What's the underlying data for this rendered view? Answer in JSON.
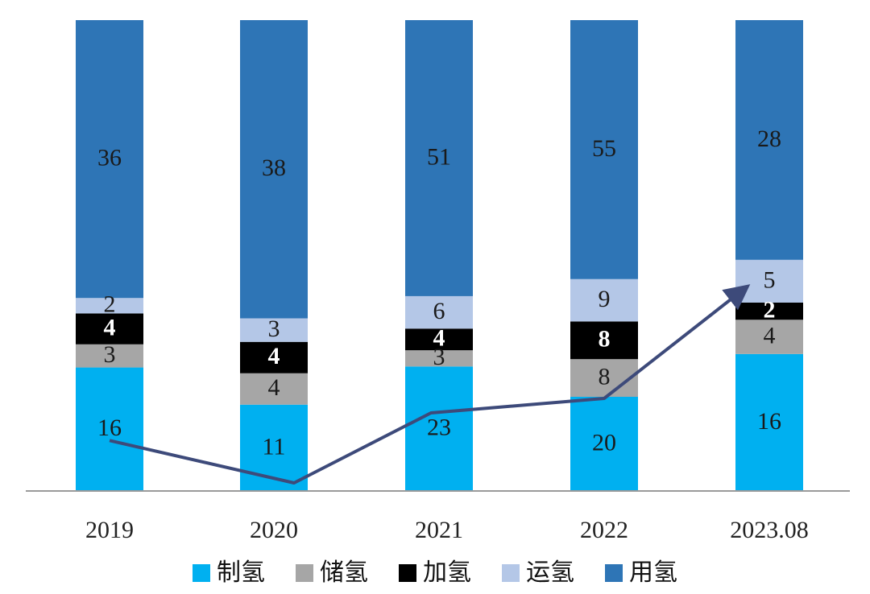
{
  "chart_data": {
    "type": "bar",
    "stacked": true,
    "categories": [
      "2019",
      "2020",
      "2021",
      "2022",
      "2023.08"
    ],
    "series": [
      {
        "name": "制氢",
        "color": "#00b0f0",
        "values": [
          16,
          11,
          23,
          20,
          16
        ],
        "label_color": "#1a1a1a",
        "label_bold": false
      },
      {
        "name": "储氢",
        "color": "#a6a6a6",
        "values": [
          3,
          4,
          3,
          8,
          4
        ],
        "label_color": "#1a1a1a",
        "label_bold": false
      },
      {
        "name": "加氢",
        "color": "#000000",
        "values": [
          4,
          4,
          4,
          8,
          2
        ],
        "label_color": "#ffffff",
        "label_bold": true
      },
      {
        "name": "运氢",
        "color": "#b4c7e7",
        "values": [
          2,
          3,
          6,
          9,
          5
        ],
        "label_color": "#1a1a1a",
        "label_bold": false
      },
      {
        "name": "用氢",
        "color": "#2e75b6",
        "values": [
          36,
          38,
          51,
          55,
          28
        ],
        "label_color": "#1a1a1a",
        "label_bold": false
      }
    ],
    "trend_line": {
      "follows_series": "制氢",
      "color": "#3d4a7a",
      "arrow": true
    },
    "legend": {
      "position": "bottom"
    },
    "grid": false,
    "title": "",
    "xlabel": "",
    "ylabel": ""
  }
}
